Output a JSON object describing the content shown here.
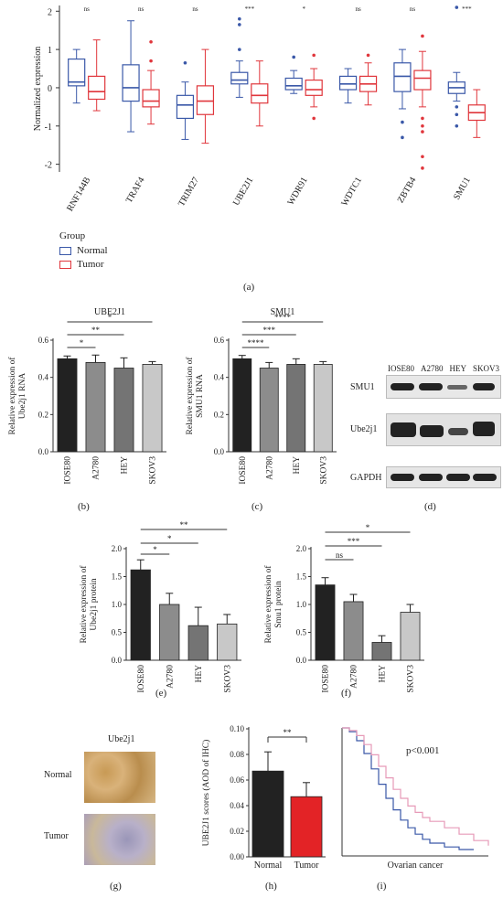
{
  "colors": {
    "normal": "#3a58a8",
    "tumor": "#e0363c",
    "dark": "#222222",
    "gray1": "#8c8c8c",
    "gray2": "#747474",
    "gray3": "#c8c8c8",
    "red_bar": "#e32326"
  },
  "chart_data": [
    {
      "panel": "(a)",
      "type": "box",
      "ylabel": "Normalized expression",
      "yticks": [
        -2,
        -1,
        0,
        1,
        2
      ],
      "ylim": [
        -2.2,
        2.15
      ],
      "categories": [
        "RNF144B",
        "TRAF4",
        "TRIM27",
        "UBE2J1",
        "WDR91",
        "WDTC1",
        "ZBTB4",
        "SMU1"
      ],
      "significance": [
        "ns",
        "ns",
        "ns",
        "***",
        "*",
        "ns",
        "ns",
        "***"
      ],
      "legend": {
        "title": "Group",
        "items": [
          "Normal",
          "Tumor"
        ]
      },
      "series": [
        {
          "name": "Normal",
          "boxes": [
            {
              "min": -0.4,
              "q1": 0.05,
              "median": 0.15,
              "q3": 0.75,
              "max": 1.0,
              "outliers": []
            },
            {
              "min": -1.15,
              "q1": -0.35,
              "median": 0.0,
              "q3": 0.6,
              "max": 1.75,
              "outliers": []
            },
            {
              "min": -1.35,
              "q1": -0.8,
              "median": -0.45,
              "q3": -0.2,
              "max": 0.15,
              "outliers": [
                0.65
              ]
            },
            {
              "min": -0.25,
              "q1": 0.1,
              "median": 0.2,
              "q3": 0.4,
              "max": 0.7,
              "outliers": [
                1.0,
                1.65,
                1.8
              ]
            },
            {
              "min": -0.15,
              "q1": -0.05,
              "median": 0.05,
              "q3": 0.25,
              "max": 0.45,
              "outliers": [
                0.8
              ]
            },
            {
              "min": -0.4,
              "q1": -0.05,
              "median": 0.1,
              "q3": 0.3,
              "max": 0.5,
              "outliers": []
            },
            {
              "min": -0.55,
              "q1": -0.1,
              "median": 0.3,
              "q3": 0.65,
              "max": 1.0,
              "outliers": [
                -0.9,
                -1.3
              ]
            },
            {
              "min": -0.35,
              "q1": -0.15,
              "median": 0.0,
              "q3": 0.15,
              "max": 0.4,
              "outliers": [
                -0.5,
                -0.7,
                -1.0,
                2.1
              ]
            }
          ]
        },
        {
          "name": "Tumor",
          "boxes": [
            {
              "min": -0.6,
              "q1": -0.3,
              "median": -0.1,
              "q3": 0.3,
              "max": 1.25,
              "outliers": []
            },
            {
              "min": -0.95,
              "q1": -0.5,
              "median": -0.35,
              "q3": -0.05,
              "max": 0.45,
              "outliers": [
                0.7,
                1.2
              ]
            },
            {
              "min": -1.45,
              "q1": -0.7,
              "median": -0.35,
              "q3": 0.05,
              "max": 1.0,
              "outliers": []
            },
            {
              "min": -1.0,
              "q1": -0.4,
              "median": -0.2,
              "q3": 0.1,
              "max": 0.7,
              "outliers": []
            },
            {
              "min": -0.5,
              "q1": -0.2,
              "median": -0.05,
              "q3": 0.2,
              "max": 0.5,
              "outliers": [
                0.85,
                -0.8
              ]
            },
            {
              "min": -0.45,
              "q1": -0.1,
              "median": 0.1,
              "q3": 0.3,
              "max": 0.65,
              "outliers": [
                0.85
              ]
            },
            {
              "min": -0.5,
              "q1": -0.05,
              "median": 0.25,
              "q3": 0.45,
              "max": 0.95,
              "outliers": [
                1.35,
                -0.8,
                -1.0,
                -1.15,
                -1.8,
                -2.1
              ]
            },
            {
              "min": -1.3,
              "q1": -0.85,
              "median": -0.65,
              "q3": -0.45,
              "max": -0.05,
              "outliers": []
            }
          ]
        }
      ]
    },
    {
      "panel": "(b)",
      "type": "bar",
      "title": "UBE2J1",
      "ylabel_lines": [
        "Relative expression of",
        "Ube2j1 RNA"
      ],
      "categories": [
        "IOSE80",
        "A2780",
        "HEY",
        "SKOV3"
      ],
      "values": [
        0.5,
        0.48,
        0.45,
        0.47
      ],
      "errors": [
        0.015,
        0.04,
        0.055,
        0.015
      ],
      "yticks": [
        "0.0",
        "0.2",
        "0.4",
        "0.6"
      ],
      "ylim": [
        0,
        0.6
      ],
      "significance": [
        "*",
        "**",
        "*"
      ]
    },
    {
      "panel": "(c)",
      "type": "bar",
      "title": "SMU1",
      "ylabel_lines": [
        "Relative expression of",
        "SMU1 RNA"
      ],
      "categories": [
        "IOSE80",
        "A2780",
        "HEY",
        "SKOV3"
      ],
      "values": [
        0.5,
        0.45,
        0.47,
        0.47
      ],
      "errors": [
        0.018,
        0.03,
        0.03,
        0.015
      ],
      "yticks": [
        "0.0",
        "0.2",
        "0.4",
        "0.6"
      ],
      "ylim": [
        0,
        0.6
      ],
      "significance": [
        "****",
        "***",
        "****"
      ]
    },
    {
      "panel": "(e)",
      "type": "bar",
      "ylabel_lines": [
        "Relative expression of",
        "Ube2j1 protein"
      ],
      "categories": [
        "IOSE80",
        "A2780",
        "HEY",
        "SKOV3"
      ],
      "values": [
        1.62,
        1.0,
        0.62,
        0.65
      ],
      "errors": [
        0.18,
        0.2,
        0.33,
        0.17
      ],
      "yticks": [
        "0.0",
        "0.5",
        "1.0",
        "1.5",
        "2.0"
      ],
      "ylim": [
        0,
        2.0
      ],
      "significance": [
        "*",
        "*",
        "**"
      ]
    },
    {
      "panel": "(f)",
      "type": "bar",
      "ylabel_lines": [
        "Relative expression of",
        "Smu1 protein"
      ],
      "categories": [
        "IOSE80",
        "A2780",
        "HEY",
        "SKOV3"
      ],
      "values": [
        1.35,
        1.05,
        0.32,
        0.86
      ],
      "errors": [
        0.13,
        0.13,
        0.12,
        0.14
      ],
      "yticks": [
        "0.0",
        "0.5",
        "1.0",
        "1.5",
        "2.0"
      ],
      "ylim": [
        0,
        2.0
      ],
      "significance": [
        "ns",
        "***",
        "*"
      ]
    },
    {
      "panel": "(h)",
      "type": "bar",
      "ylabel_lines": [
        "UBE2J1 scores (AOD of IHC)"
      ],
      "categories": [
        "Normal",
        "Tumor"
      ],
      "values": [
        0.067,
        0.047
      ],
      "errors": [
        0.015,
        0.011
      ],
      "yticks": [
        "0.00",
        "0.02",
        "0.04",
        "0.06",
        "0.08",
        "0.10"
      ],
      "ylim": [
        0,
        0.1
      ],
      "significance": [
        "**"
      ]
    },
    {
      "panel": "(i)",
      "type": "line",
      "annotation": "p<0.001",
      "xlabel": "Ovarian cancer",
      "series": [
        {
          "color": "#3a58a8",
          "points": [
            [
              0,
              1.0
            ],
            [
              0.05,
              0.97
            ],
            [
              0.1,
              0.9
            ],
            [
              0.15,
              0.8
            ],
            [
              0.2,
              0.68
            ],
            [
              0.25,
              0.56
            ],
            [
              0.3,
              0.45
            ],
            [
              0.35,
              0.36
            ],
            [
              0.4,
              0.28
            ],
            [
              0.45,
              0.22
            ],
            [
              0.5,
              0.17
            ],
            [
              0.55,
              0.13
            ],
            [
              0.6,
              0.1
            ],
            [
              0.7,
              0.07
            ],
            [
              0.8,
              0.05
            ],
            [
              0.9,
              0.05
            ]
          ]
        },
        {
          "color": "#e79ab8",
          "points": [
            [
              0,
              1.0
            ],
            [
              0.05,
              0.98
            ],
            [
              0.1,
              0.94
            ],
            [
              0.15,
              0.87
            ],
            [
              0.2,
              0.79
            ],
            [
              0.25,
              0.7
            ],
            [
              0.3,
              0.61
            ],
            [
              0.35,
              0.52
            ],
            [
              0.4,
              0.45
            ],
            [
              0.45,
              0.39
            ],
            [
              0.5,
              0.34
            ],
            [
              0.55,
              0.3
            ],
            [
              0.6,
              0.27
            ],
            [
              0.7,
              0.22
            ],
            [
              0.8,
              0.17
            ],
            [
              0.9,
              0.12
            ],
            [
              1.0,
              0.08
            ]
          ]
        }
      ]
    }
  ],
  "blot": {
    "lanes": [
      "IOSE80",
      "A2780",
      "HEY",
      "SKOV3"
    ],
    "rows": [
      "SMU1",
      "Ube2j1",
      "GAPDH"
    ],
    "label": "(d)"
  },
  "ihc": {
    "title": "Ube2j1",
    "rows": [
      "Normal",
      "Tumor"
    ],
    "label": "(g)"
  },
  "panel_labels": {
    "a": "(a)",
    "b": "(b)",
    "c": "(c)",
    "d": "(d)",
    "e": "(e)",
    "f": "(f)",
    "g": "(g)",
    "h": "(h)",
    "i": "(i)"
  }
}
